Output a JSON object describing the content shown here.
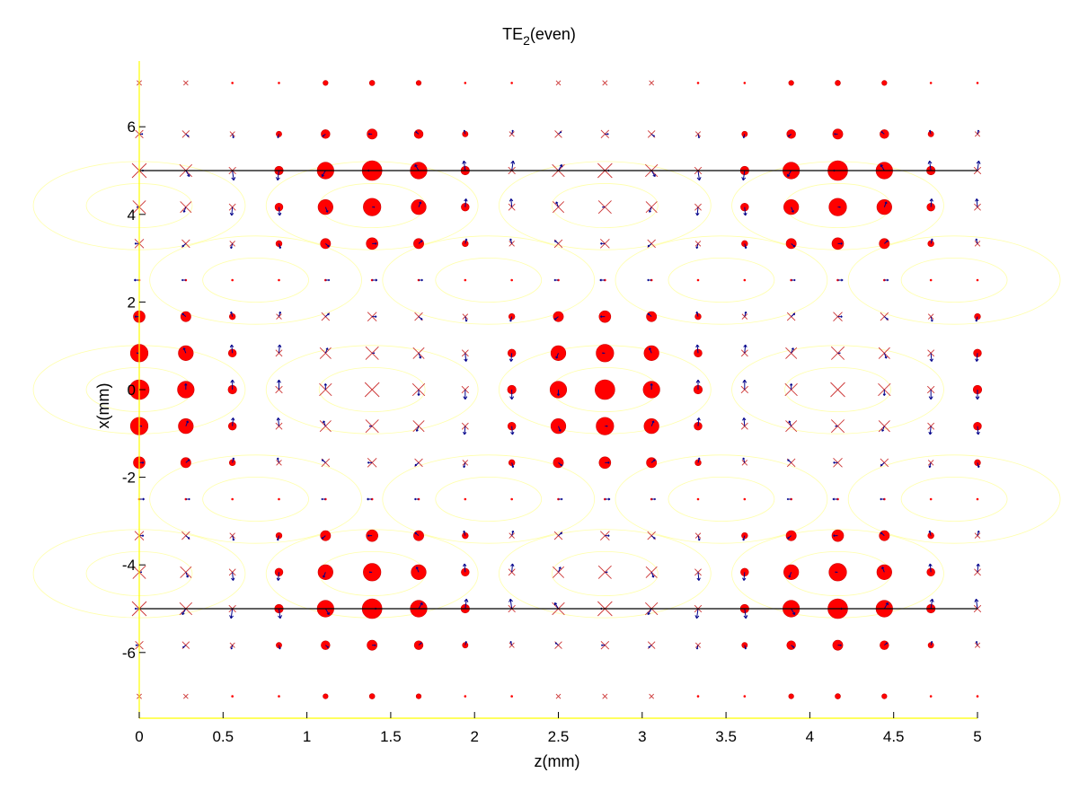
{
  "chart_data": {
    "type": "scatter",
    "title": "TE",
    "title_subscript": "2",
    "title_suffix": "(even)",
    "xlabel": "z(mm)",
    "ylabel": "x(mm)",
    "xlim": [
      0,
      5
    ],
    "ylim": [
      -7.5,
      7.5
    ],
    "xticks": [
      0,
      0.5,
      1,
      1.5,
      2,
      2.5,
      3,
      3.5,
      4,
      4.5,
      5
    ],
    "xtick_labels": [
      "0",
      "0.5",
      "1",
      "1.5",
      "2",
      "2.5",
      "3",
      "3.5",
      "4",
      "4.5",
      "5"
    ],
    "yticks": [
      -6,
      -4,
      -2,
      0,
      2,
      4,
      6
    ],
    "ytick_labels": [
      "-6",
      "-4",
      "-2",
      "0",
      "2",
      "4",
      "6"
    ],
    "grid": false,
    "slab_boundaries_x": [
      -5,
      5
    ],
    "grid_z": [
      0,
      0.2778,
      0.5556,
      0.8333,
      1.1111,
      1.3889,
      1.6667,
      1.9444,
      2.2222,
      2.5,
      2.7778,
      3.0556,
      3.3333,
      3.6111,
      3.8889,
      4.1667,
      4.4444,
      4.7222,
      5
    ],
    "grid_x": [
      -7.0,
      -5.8333,
      -5.0,
      -4.1667,
      -3.3333,
      -2.5,
      -1.6667,
      -0.8333,
      0,
      0.8333,
      1.6667,
      2.5,
      3.3333,
      4.1667,
      5.0,
      5.8333,
      7.0
    ],
    "field_model": "E_y = cos(k_x x) cos(k_z z) inside slab |x|<5, decaying outside; H arrows tangential",
    "k_z_period_mm": 2.7778,
    "colors": {
      "ey_marker": "#ff0000",
      "ey_edge": "#cc0000",
      "h_arrow": "#00008b",
      "cross": "#cc3333",
      "boundary": "#000000",
      "axes": "#ffff00",
      "contour": "#ffff66"
    }
  }
}
